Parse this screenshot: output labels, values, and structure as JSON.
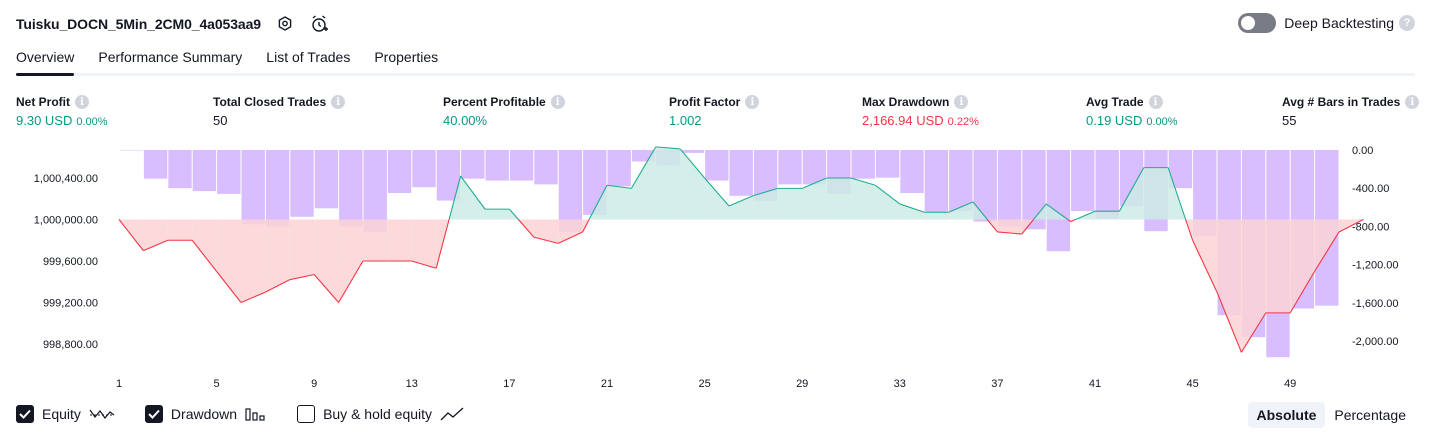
{
  "header": {
    "title": "Tuisku_DOCN_5Min_2CM0_4a053aa9",
    "settings_icon": "gear-icon",
    "alert_icon": "alarm-clock-add-icon"
  },
  "deep_backtesting": {
    "label": "Deep Backtesting",
    "enabled": false,
    "help": "?"
  },
  "tabs": [
    {
      "label": "Overview",
      "active": true
    },
    {
      "label": "Performance Summary"
    },
    {
      "label": "List of Trades"
    },
    {
      "label": "Properties"
    }
  ],
  "metrics": [
    {
      "label": "Net Profit",
      "value": "9.30 USD",
      "pct": "0.00%",
      "tone": "pos",
      "info": "i"
    },
    {
      "label": "Total Closed Trades",
      "value": "50",
      "pct": "",
      "tone": "neu",
      "info": "i"
    },
    {
      "label": "Percent Profitable",
      "value": "40.00%",
      "pct": "",
      "tone": "pos",
      "info": "i"
    },
    {
      "label": "Profit Factor",
      "value": "1.002",
      "pct": "",
      "tone": "pos",
      "info": "i"
    },
    {
      "label": "Max Drawdown",
      "value": "2,166.94 USD",
      "pct": "0.22%",
      "tone": "neg",
      "info": "i"
    },
    {
      "label": "Avg Trade",
      "value": "0.19 USD",
      "pct": "0.00%",
      "tone": "pos",
      "info": "i"
    },
    {
      "label": "Avg # Bars in Trades",
      "value": "55",
      "pct": "",
      "tone": "neu",
      "info": "i"
    }
  ],
  "chart_data": {
    "type": "line",
    "x": [
      1,
      2,
      3,
      4,
      5,
      6,
      7,
      8,
      9,
      10,
      11,
      12,
      13,
      14,
      15,
      16,
      17,
      18,
      19,
      20,
      21,
      22,
      23,
      24,
      25,
      26,
      27,
      28,
      29,
      30,
      31,
      32,
      33,
      34,
      35,
      36,
      37,
      38,
      39,
      40,
      41,
      42,
      43,
      44,
      45,
      46,
      47,
      48,
      49,
      50,
      51,
      52
    ],
    "x_ticks": [
      "1",
      "5",
      "9",
      "13",
      "17",
      "21",
      "25",
      "29",
      "33",
      "37",
      "41",
      "45",
      "49"
    ],
    "equity_baseline": 1000000,
    "equity": [
      1000000,
      999700,
      999800,
      999800,
      999500,
      999200,
      999300,
      999420,
      999470,
      999200,
      999600,
      999600,
      999600,
      999530,
      1000420,
      1000100,
      1000100,
      999830,
      999770,
      999880,
      1000330,
      1000300,
      1000700,
      1000680,
      1000400,
      1000130,
      1000230,
      1000300,
      1000300,
      1000400,
      1000400,
      1000330,
      1000150,
      1000070,
      1000070,
      1000170,
      999880,
      999860,
      1000150,
      999980,
      1000080,
      1000080,
      1000500,
      1000500,
      999800,
      999300,
      998720,
      999100,
      999100,
      999500,
      999880,
      1000000
    ],
    "drawdown": [
      0,
      -300,
      -400,
      -430,
      -460,
      -780,
      -800,
      -700,
      -610,
      -800,
      -860,
      -450,
      -390,
      -530,
      -300,
      -320,
      -320,
      -360,
      -860,
      -680,
      -380,
      -120,
      -160,
      -30,
      -320,
      -480,
      -530,
      -360,
      -360,
      -460,
      -300,
      -290,
      -450,
      -650,
      -640,
      -750,
      -800,
      -830,
      -1060,
      -640,
      -720,
      -590,
      -850,
      -400,
      -900,
      -1730,
      -1960,
      -2170,
      -1660,
      -1630,
      -1600,
      -870
    ],
    "y_left_ticks": [
      "1,000,400.00",
      "1,000,000.00",
      "999,600.00",
      "999,200.00",
      "998,800.00"
    ],
    "y_right_ticks": [
      "0.00",
      "-400.00",
      "-800.00",
      "-1,200.00",
      "-1,600.00",
      "-2,000.00"
    ],
    "y_left_range": [
      998600,
      1000700
    ],
    "y_right_range": [
      -2200,
      0
    ],
    "colors": {
      "drawdown": "#d1b3ff",
      "equity_up_line": "#22ab94",
      "equity_up_fill": "#cdebe5",
      "equity_down_line": "#f23645",
      "equity_down_fill": "#fbd3d6"
    }
  },
  "legend": [
    {
      "label": "Equity",
      "checked": true,
      "icon": "equity-line-icon"
    },
    {
      "label": "Drawdown",
      "checked": true,
      "icon": "drawdown-bars-icon"
    },
    {
      "label": "Buy & hold equity",
      "checked": false,
      "icon": "buy-hold-line-icon"
    }
  ],
  "mode": {
    "absolute": "Absolute",
    "percentage": "Percentage",
    "active": "absolute"
  }
}
